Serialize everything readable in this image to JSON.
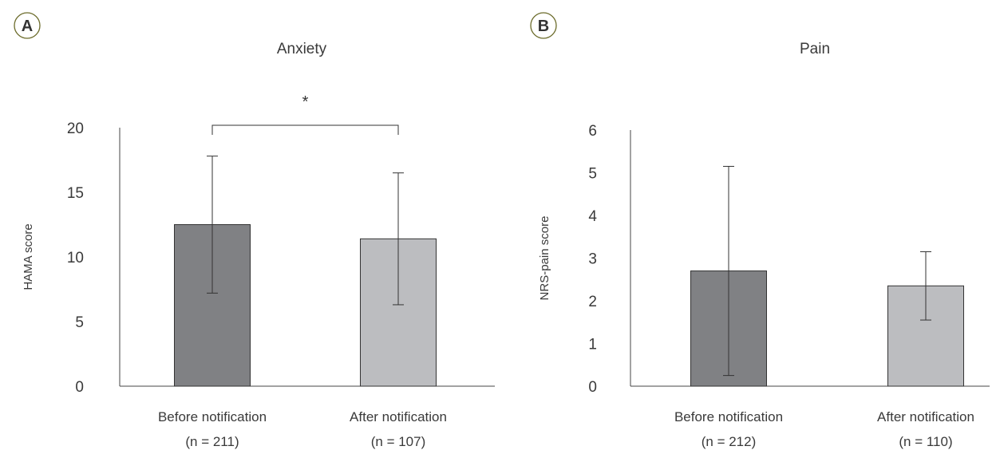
{
  "chart_data": [
    {
      "panel": "A",
      "type": "bar",
      "title": "Anxiety",
      "ylabel": "HAMA score",
      "ylim": [
        0,
        20
      ],
      "yticks": [
        "0",
        "5",
        "10",
        "15",
        "20"
      ],
      "categories": [
        "Before notification",
        "After notification"
      ],
      "n_labels": [
        "(n = 211)",
        "(n = 107)"
      ],
      "values": [
        12.5,
        11.4
      ],
      "error": [
        5.3,
        5.1
      ],
      "colors": [
        "#808184",
        "#bcbdc0"
      ],
      "significance": "*"
    },
    {
      "panel": "B",
      "type": "bar",
      "title": "Pain",
      "ylabel": "NRS-pain score",
      "ylim": [
        0,
        6
      ],
      "yticks": [
        "0",
        "1",
        "2",
        "3",
        "4",
        "5",
        "6"
      ],
      "categories": [
        "Before notification",
        "After notification"
      ],
      "n_labels": [
        "(n = 212)",
        "(n = 110)"
      ],
      "values": [
        2.7,
        2.35
      ],
      "error": [
        2.45,
        0.8
      ],
      "colors": [
        "#808184",
        "#bcbdc0"
      ],
      "significance": ""
    }
  ]
}
